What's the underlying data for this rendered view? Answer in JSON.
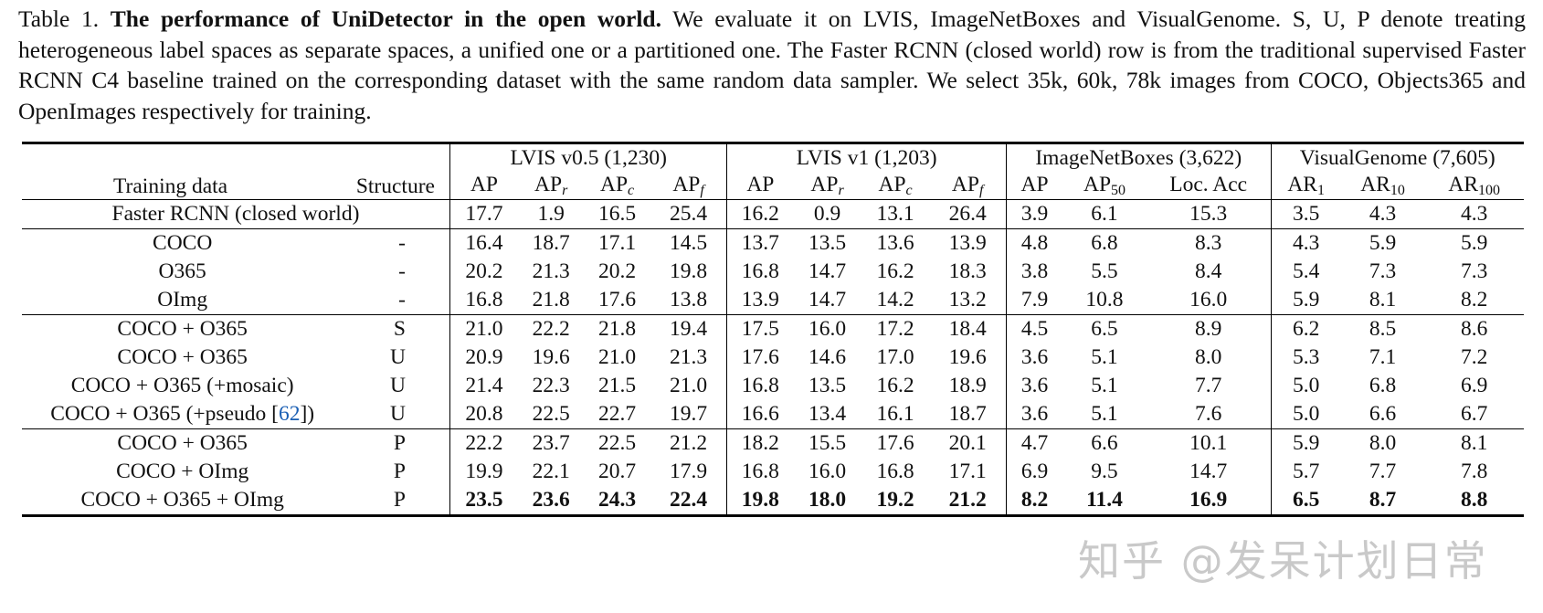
{
  "caption": {
    "label": "Table 1.",
    "title": "The performance of UniDetector in the open world.",
    "body": "We evaluate it on LVIS, ImageNetBoxes and VisualGenome. S, U, P denote treating heterogeneous label spaces as separate spaces, a unified one or a partitioned one. The Faster RCNN (closed world) row is from the traditional supervised Faster RCNN C4 baseline trained on the corresponding dataset with the same random data sampler. We select 35k, 60k, 78k images from COCO, Objects365 and OpenImages respectively for training."
  },
  "table": {
    "header": {
      "training_data": "Training data",
      "structure": "Structure",
      "groups": [
        {
          "name": "LVIS v0.5 (1,230)",
          "cols": [
            {
              "base": "AP",
              "sub": ""
            },
            {
              "base": "AP",
              "sub": "r"
            },
            {
              "base": "AP",
              "sub": "c"
            },
            {
              "base": "AP",
              "sub": "f"
            }
          ]
        },
        {
          "name": "LVIS v1 (1,203)",
          "cols": [
            {
              "base": "AP",
              "sub": ""
            },
            {
              "base": "AP",
              "sub": "r"
            },
            {
              "base": "AP",
              "sub": "c"
            },
            {
              "base": "AP",
              "sub": "f"
            }
          ]
        },
        {
          "name": "ImageNetBoxes (3,622)",
          "cols": [
            {
              "base": "AP",
              "sub": ""
            },
            {
              "base": "AP",
              "sub": "50"
            },
            {
              "base": "Loc. Acc",
              "sub": ""
            }
          ]
        },
        {
          "name": "VisualGenome (7,605)",
          "cols": [
            {
              "base": "AR",
              "sub": "1"
            },
            {
              "base": "AR",
              "sub": "10"
            },
            {
              "base": "AR",
              "sub": "100"
            }
          ]
        }
      ]
    },
    "baseline": {
      "label": "Faster RCNN (closed world)",
      "values": [
        "17.7",
        "1.9",
        "16.5",
        "25.4",
        "16.2",
        "0.9",
        "13.1",
        "26.4",
        "3.9",
        "6.1",
        "15.3",
        "3.5",
        "4.3",
        "4.3"
      ]
    },
    "row_groups": [
      [
        {
          "training": "COCO",
          "structure": "-",
          "values": [
            "16.4",
            "18.7",
            "17.1",
            "14.5",
            "13.7",
            "13.5",
            "13.6",
            "13.9",
            "4.8",
            "6.8",
            "8.3",
            "4.3",
            "5.9",
            "5.9"
          ]
        },
        {
          "training": "O365",
          "structure": "-",
          "values": [
            "20.2",
            "21.3",
            "20.2",
            "19.8",
            "16.8",
            "14.7",
            "16.2",
            "18.3",
            "3.8",
            "5.5",
            "8.4",
            "5.4",
            "7.3",
            "7.3"
          ]
        },
        {
          "training": "OImg",
          "structure": "-",
          "values": [
            "16.8",
            "21.8",
            "17.6",
            "13.8",
            "13.9",
            "14.7",
            "14.2",
            "13.2",
            "7.9",
            "10.8",
            "16.0",
            "5.9",
            "8.1",
            "8.2"
          ]
        }
      ],
      [
        {
          "training": "COCO + O365",
          "structure": "S",
          "values": [
            "21.0",
            "22.2",
            "21.8",
            "19.4",
            "17.5",
            "16.0",
            "17.2",
            "18.4",
            "4.5",
            "6.5",
            "8.9",
            "6.2",
            "8.5",
            "8.6"
          ]
        },
        {
          "training": "COCO + O365",
          "structure": "U",
          "values": [
            "20.9",
            "19.6",
            "21.0",
            "21.3",
            "17.6",
            "14.6",
            "17.0",
            "19.6",
            "3.6",
            "5.1",
            "8.0",
            "5.3",
            "7.1",
            "7.2"
          ]
        },
        {
          "training": "COCO + O365 (+mosaic)",
          "structure": "U",
          "values": [
            "21.4",
            "22.3",
            "21.5",
            "21.0",
            "16.8",
            "13.5",
            "16.2",
            "18.9",
            "3.6",
            "5.1",
            "7.7",
            "5.0",
            "6.8",
            "6.9"
          ]
        },
        {
          "training_prefix": "COCO + O365 (+pseudo [",
          "cite": "62",
          "training_suffix": "])",
          "structure": "U",
          "values": [
            "20.8",
            "22.5",
            "22.7",
            "19.7",
            "16.6",
            "13.4",
            "16.1",
            "18.7",
            "3.6",
            "5.1",
            "7.6",
            "5.0",
            "6.6",
            "6.7"
          ]
        }
      ],
      [
        {
          "training": "COCO + O365",
          "structure": "P",
          "values": [
            "22.2",
            "23.7",
            "22.5",
            "21.2",
            "18.2",
            "15.5",
            "17.6",
            "20.1",
            "4.7",
            "6.6",
            "10.1",
            "5.9",
            "8.0",
            "8.1"
          ]
        },
        {
          "training": "COCO + OImg",
          "structure": "P",
          "values": [
            "19.9",
            "22.1",
            "20.7",
            "17.9",
            "16.8",
            "16.0",
            "16.8",
            "17.1",
            "6.9",
            "9.5",
            "14.7",
            "5.7",
            "7.7",
            "7.8"
          ]
        },
        {
          "training": "COCO + O365 + OImg",
          "structure": "P",
          "bold": true,
          "values": [
            "23.5",
            "23.6",
            "24.3",
            "22.4",
            "19.8",
            "18.0",
            "19.2",
            "21.2",
            "8.2",
            "11.4",
            "16.9",
            "6.5",
            "8.7",
            "8.8"
          ]
        }
      ]
    ]
  },
  "watermark": "知乎 @发呆计划日常"
}
